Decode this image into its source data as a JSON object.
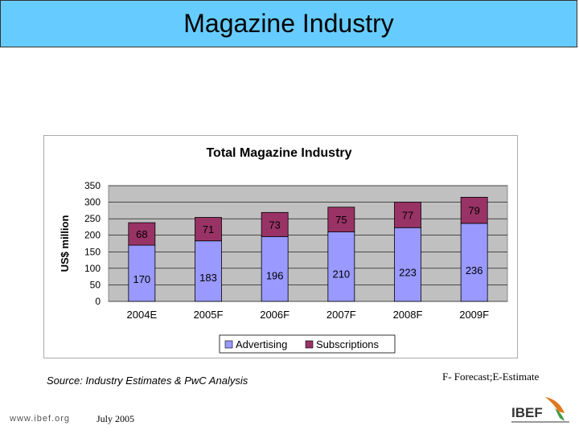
{
  "header": {
    "title": "Magazine Industry"
  },
  "chart_data": {
    "type": "bar",
    "stacked": true,
    "title": "Total Magazine Industry",
    "xlabel": "",
    "ylabel": "US$ million",
    "ylim": [
      0,
      350
    ],
    "yticks": [
      0,
      50,
      100,
      150,
      200,
      250,
      300,
      350
    ],
    "categories": [
      "2004E",
      "2005F",
      "2006F",
      "2007F",
      "2008F",
      "2009F"
    ],
    "series": [
      {
        "name": "Advertising",
        "values": [
          170,
          183,
          196,
          210,
          223,
          236
        ],
        "color": "#9999ff"
      },
      {
        "name": "Subscriptions",
        "values": [
          68,
          71,
          73,
          75,
          77,
          79
        ],
        "color": "#993366"
      }
    ],
    "legend_position": "bottom",
    "plot_background": "#c0c0c0",
    "grid": true
  },
  "footer": {
    "source": "Source: Industry Estimates & PwC Analysis",
    "note": "F- Forecast;E-Estimate",
    "website": "www.ibef.org",
    "date": "July 2005",
    "logo": "IBEF"
  }
}
